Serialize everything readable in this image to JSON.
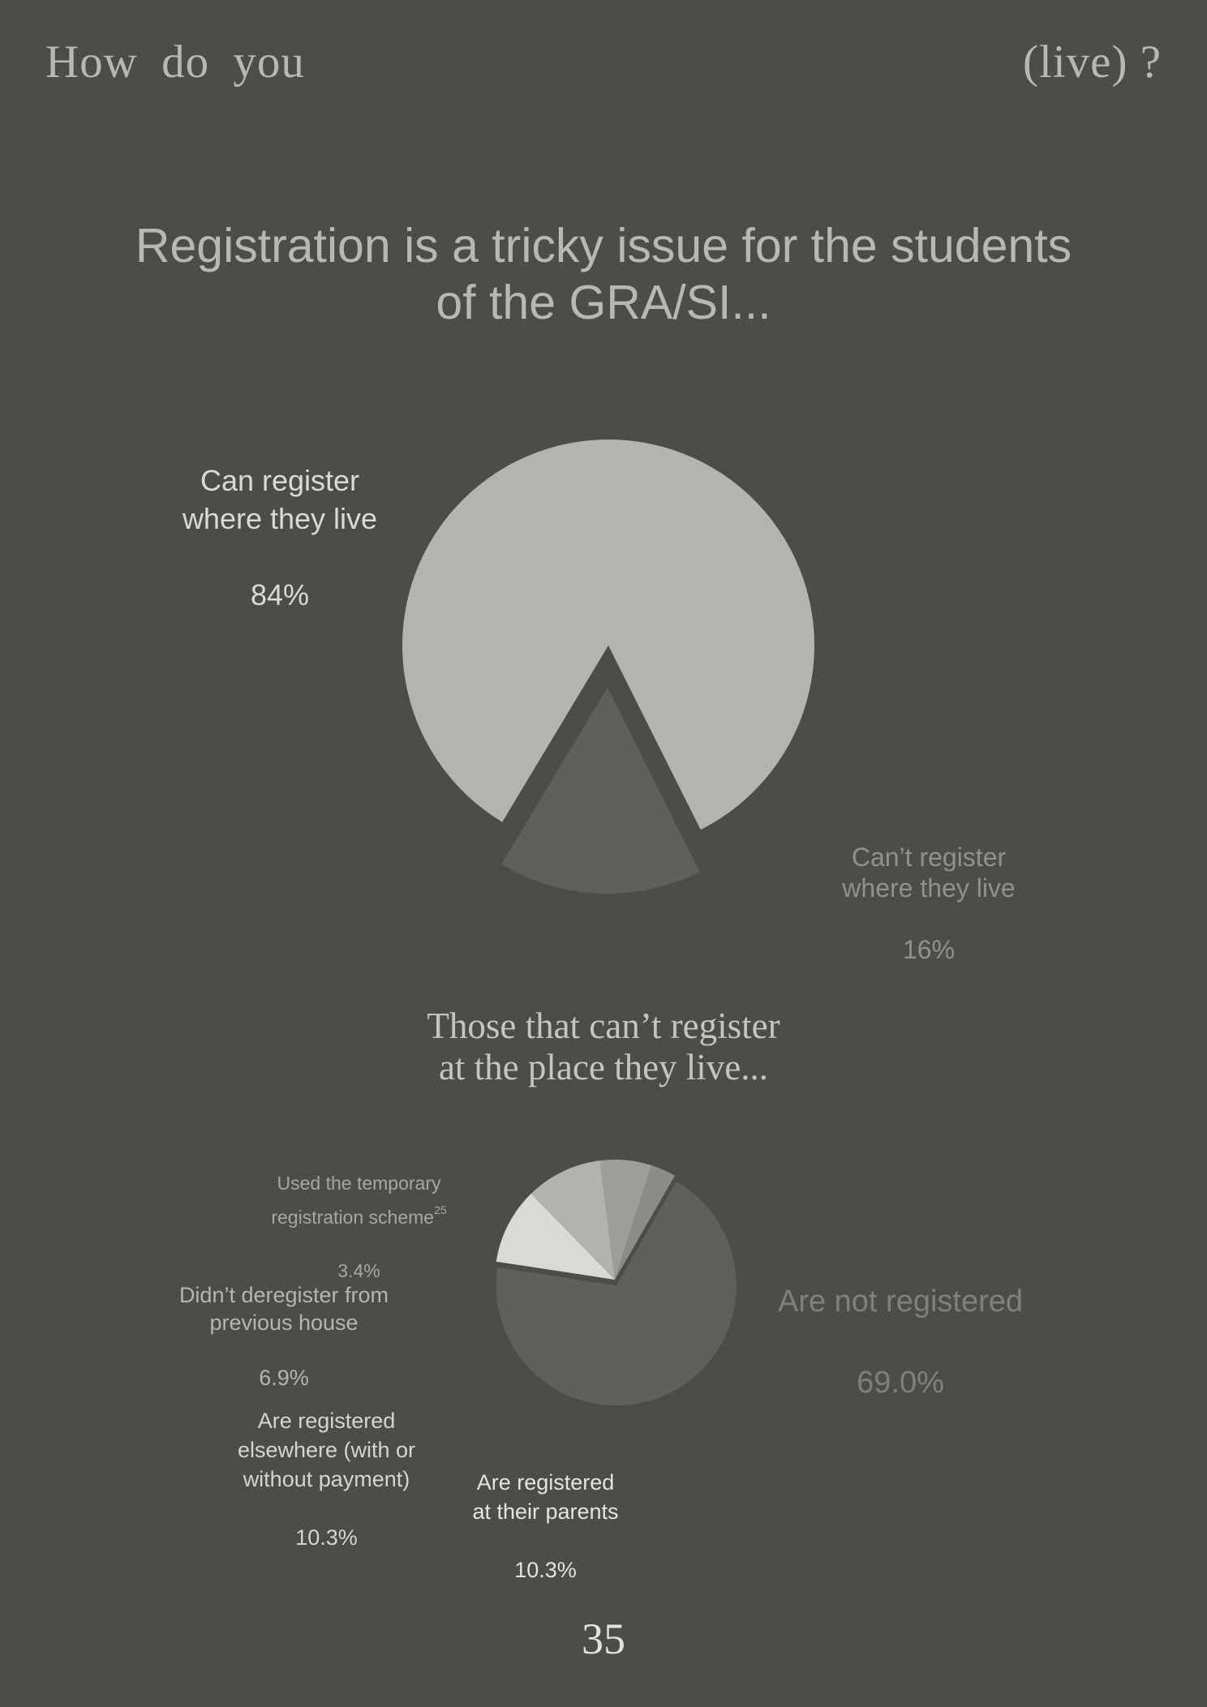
{
  "header": {
    "left": "How do you",
    "right": "(live) ?"
  },
  "title": "Registration is a tricky issue for the students\nof the GRA/SI...",
  "subtitle": "Those that can’t register\nat the place they live...",
  "page_number": "35",
  "colors": {
    "background": "#4b4d47",
    "pie1": [
      "#b2b5ae",
      "#5e605b"
    ],
    "pie2": [
      "#5e605b",
      "#d9dad4",
      "#b1b3ac",
      "#9c9e98",
      "#8a8c86"
    ]
  },
  "chart_data": [
    {
      "type": "pie",
      "title": "Registration is a tricky issue for the students of the GRA/SI...",
      "slices": [
        {
          "label": "Can register\nwhere they live",
          "value": 84,
          "display": "84%"
        },
        {
          "label": "Can’t register\nwhere they live",
          "value": 16,
          "display": "16%"
        }
      ],
      "exploded_slice": 1
    },
    {
      "type": "pie",
      "title": "Those that can’t register at the place they live...",
      "slices": [
        {
          "label": "Are not registered",
          "value": 69.0,
          "display": "69.0%"
        },
        {
          "label": "Are registered\nat their parents",
          "value": 10.3,
          "display": "10.3%"
        },
        {
          "label": "Are registered\nelsewhere (with or\nwithout payment)",
          "value": 10.3,
          "display": "10.3%"
        },
        {
          "label": "Didn’t deregister from\nprevious house",
          "value": 6.9,
          "display": "6.9%"
        },
        {
          "label": "Used the temporary\nregistration scheme",
          "value": 3.4,
          "display": "3.4%",
          "footnote": "25"
        }
      ],
      "exploded_slice": 0
    }
  ]
}
